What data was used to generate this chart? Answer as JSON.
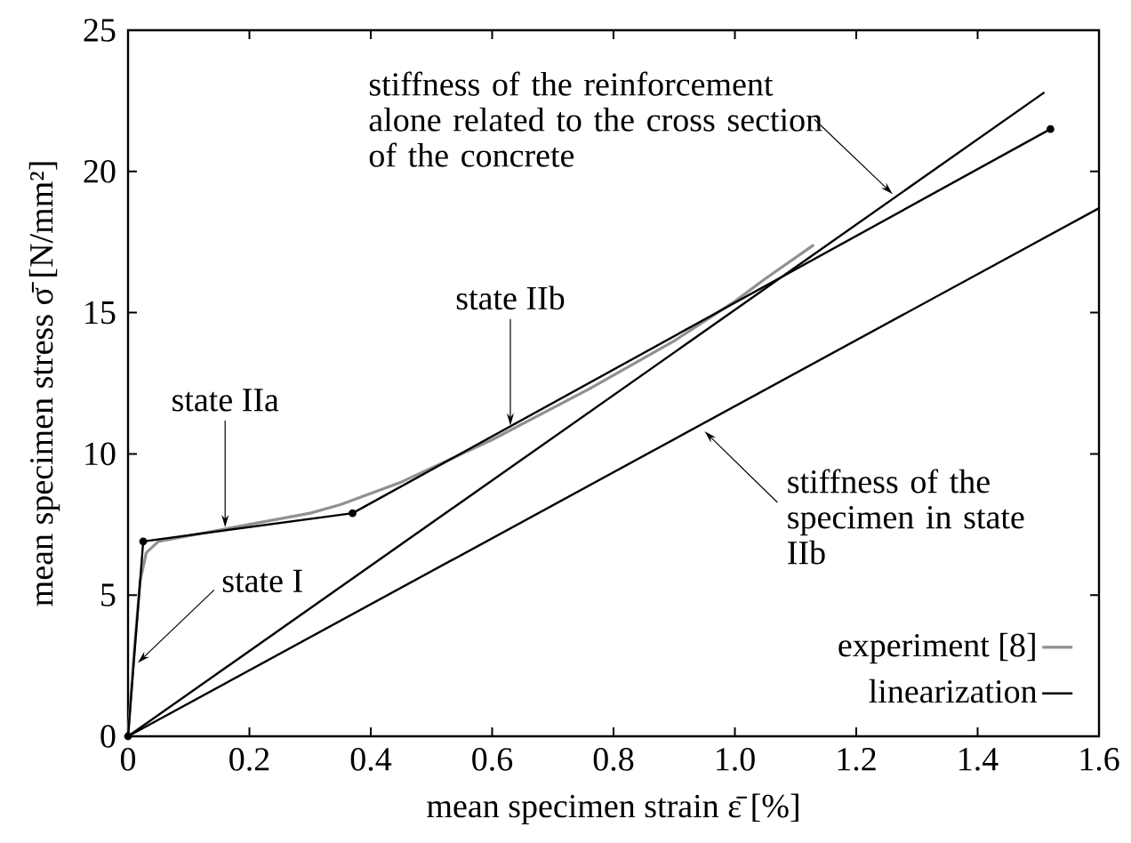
{
  "chart_data": {
    "type": "line",
    "xlabel": "mean specimen strain ε̄ [%]",
    "ylabel": "mean specimen stress σ̄ [N/mm²]",
    "xlim": [
      0,
      1.6
    ],
    "ylim": [
      0,
      25
    ],
    "xticks": [
      0,
      0.2,
      0.4,
      0.6,
      0.8,
      {
        "value": 1,
        "label": "1.0"
      },
      1.2,
      1.4,
      1.6
    ],
    "yticks": [
      0,
      5,
      10,
      15,
      20,
      25
    ],
    "grid": false,
    "legend": "bottom right",
    "series": [
      {
        "name": "experiment [8]",
        "color": "#909090",
        "x": [
          0,
          0.01,
          0.02,
          0.03,
          0.05,
          0.1,
          0.2,
          0.3,
          0.35,
          0.45,
          0.6,
          0.76,
          0.9,
          1.0,
          1.05,
          1.13
        ],
        "values": [
          0,
          3,
          5.5,
          6.5,
          6.9,
          7.1,
          7.5,
          7.9,
          8.2,
          9.0,
          10.5,
          12.3,
          14.0,
          15.4,
          16.2,
          17.4
        ]
      },
      {
        "name": "linearization",
        "color": "#000000",
        "marker": "circle",
        "x": [
          0,
          0.025,
          0.37,
          1.52
        ],
        "values": [
          0,
          6.9,
          7.9,
          21.5
        ]
      },
      {
        "color": "#000000",
        "x": [
          0,
          1.51
        ],
        "values": [
          0,
          22.8
        ]
      },
      {
        "color": "#000000",
        "x": [
          0,
          1.6
        ],
        "values": [
          0,
          18.7
        ]
      }
    ],
    "annotations": [
      {
        "text": "state I",
        "x": 0.016,
        "y": 2.6
      },
      {
        "text": "state IIa",
        "x": 0.16,
        "y": 7.4
      },
      {
        "text": "state IIb",
        "x": 0.63,
        "y": 11.0
      },
      {
        "text": "stiffness of the reinforcement alone related to the cross section of the concrete",
        "x": 1.26,
        "y": 19.2
      },
      {
        "text": "stiffness of the specimen in state IIb",
        "x": 0.95,
        "y": 10.8
      }
    ]
  }
}
